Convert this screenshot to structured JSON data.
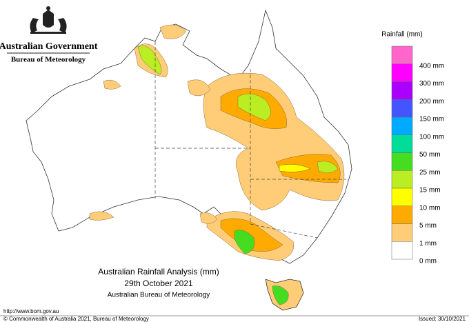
{
  "header": {
    "government": "Australian Government",
    "agency": "Bureau of Meteorology"
  },
  "map": {
    "title": "Australian Rainfall Analysis (mm)",
    "date": "29th October 2021",
    "source": "Australian Bureau of Meteorology"
  },
  "legend": {
    "title": "Rainfall (mm)",
    "colors": [
      "#ff66cc",
      "#ff00ff",
      "#aa00ff",
      "#4455ff",
      "#00aaff",
      "#00dd99",
      "#44dd22",
      "#bbee22",
      "#ffff00",
      "#ffaa00",
      "#ffcc77",
      "#ffffff"
    ],
    "labels": [
      "400 mm",
      "300 mm",
      "200 mm",
      "150 mm",
      "100 mm",
      "50 mm",
      "25 mm",
      "15 mm",
      "10 mm",
      "5 mm",
      "1 mm",
      "0 mm"
    ]
  },
  "footer": {
    "url": "http://www.bom.gov.au",
    "copyright": "© Commonwealth of Australia 2021, Bureau of Meteorology",
    "issued": "Issued: 30/10/2021"
  }
}
